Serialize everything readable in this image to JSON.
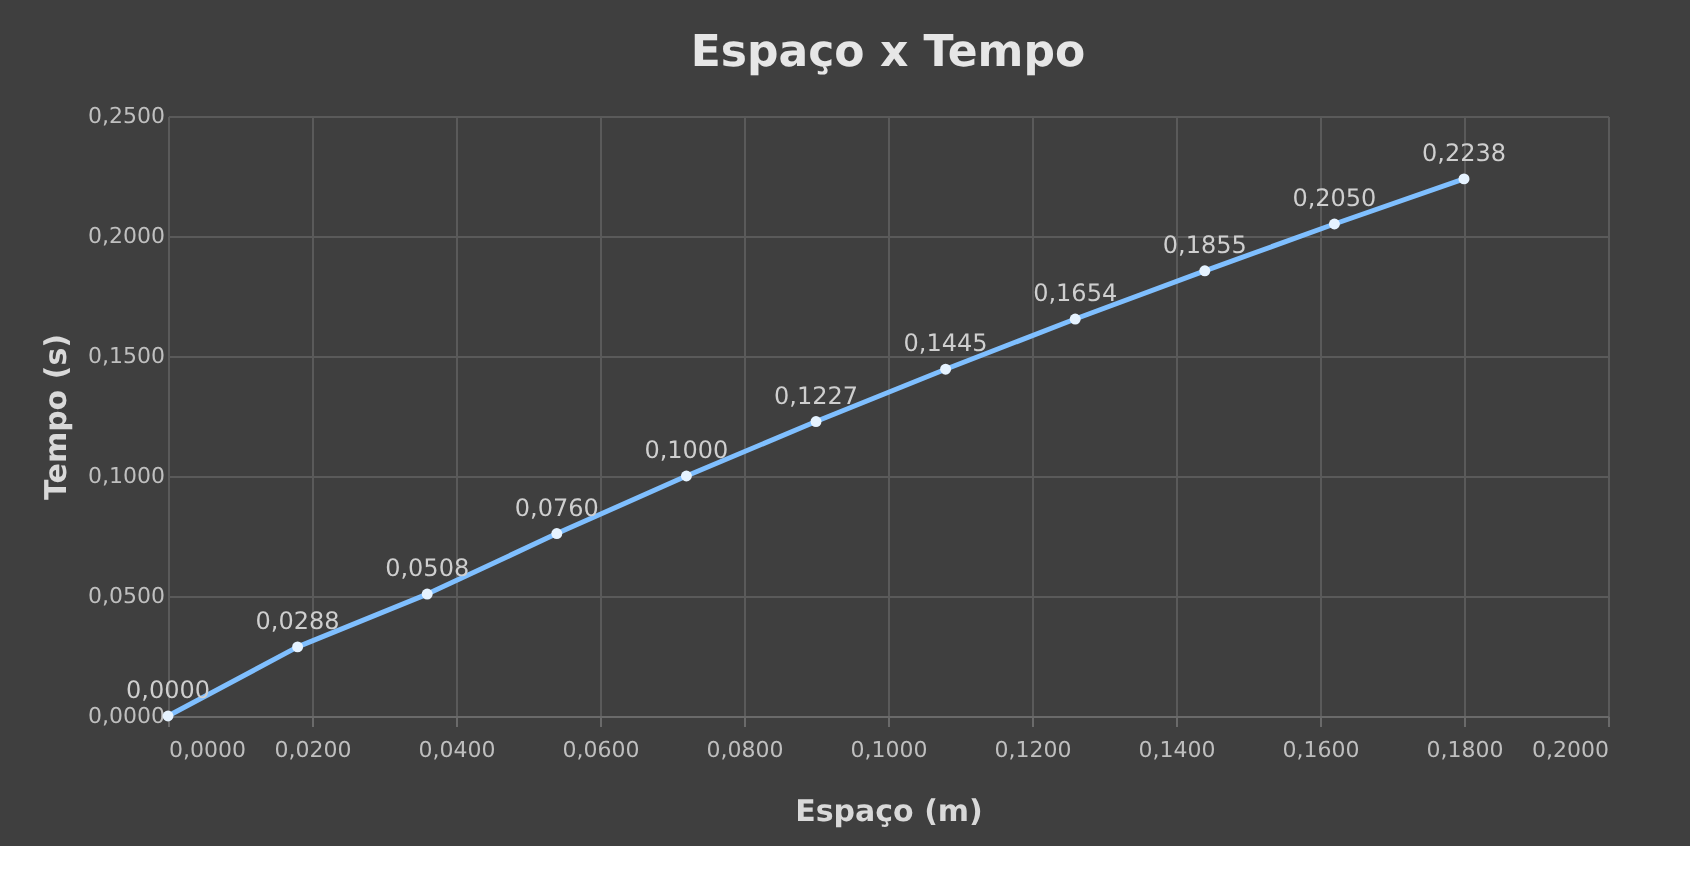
{
  "chart_data": {
    "type": "line",
    "title": "Espaço x Tempo",
    "xlabel": "Espaço (m)",
    "ylabel": "Tempo (s)",
    "x": [
      0,
      0.018,
      0.036,
      0.054,
      0.072,
      0.09,
      0.108,
      0.126,
      0.144,
      0.162,
      0.18
    ],
    "series": [
      {
        "color": "#7fbfff",
        "values": [
          0,
          0.0288,
          0.0508,
          0.076,
          0.1,
          0.1227,
          0.1445,
          0.1654,
          0.1855,
          0.205,
          0.2238
        ],
        "value_labels": [
          "0,0000",
          "0,0288",
          "0,0508",
          "0,0760",
          "0,1000",
          "0,1227",
          "0,1445",
          "0,1654",
          "0,1855",
          "0,2050",
          "0,2238"
        ]
      }
    ],
    "xlim": [
      0,
      0.2
    ],
    "xticks": [
      {
        "value": 0,
        "label": "0,0000"
      },
      {
        "value": 0.02,
        "label": "0,0200"
      },
      {
        "value": 0.04,
        "label": "0,0400"
      },
      {
        "value": 0.06,
        "label": "0,0600"
      },
      {
        "value": 0.08,
        "label": "0,0800"
      },
      {
        "value": 0.1,
        "label": "0,1000"
      },
      {
        "value": 0.12,
        "label": "0,1200"
      },
      {
        "value": 0.14,
        "label": "0,1400"
      },
      {
        "value": 0.16,
        "label": "0,1600"
      },
      {
        "value": 0.18,
        "label": "0,1800"
      },
      {
        "value": 0.2,
        "label": "0,2000"
      }
    ],
    "ylim": [
      0,
      0.25
    ],
    "yticks": [
      {
        "value": 0,
        "label": "0,0000"
      },
      {
        "value": 0.05,
        "label": "0,0500"
      },
      {
        "value": 0.1,
        "label": "0,1000"
      },
      {
        "value": 0.15,
        "label": "0,1500"
      },
      {
        "value": 0.2,
        "label": "0,2000"
      },
      {
        "value": 0.25,
        "label": "0,2500"
      }
    ],
    "grid": true,
    "marker": "circle",
    "line_style": "solid"
  }
}
